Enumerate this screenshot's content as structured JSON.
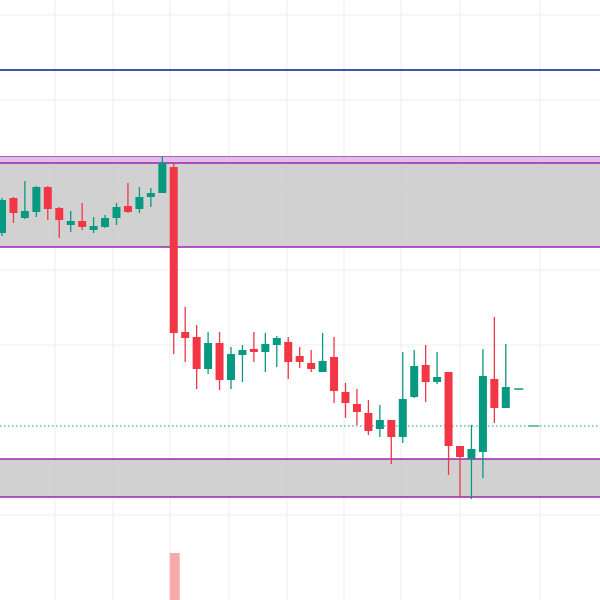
{
  "chart_data": {
    "type": "candlestick",
    "title": "",
    "xlabel": "",
    "ylabel": "",
    "ylim": [
      0,
      60
    ],
    "grid": true,
    "colors": {
      "up": "#089981",
      "down": "#f23645",
      "zone_fill": "#cccccc",
      "zone_border": "#9c27b0",
      "resistance_line": "#3f51b5",
      "dotted_line": "#089981",
      "volume": "#f7a9ad",
      "grid": "#eeeeee",
      "background": "#ffffff"
    },
    "candles": [
      [
        36.7,
        40.2,
        36.4,
        40.0
      ],
      [
        40.2,
        40.3,
        37.7,
        38.7
      ],
      [
        38.2,
        41.9,
        38.1,
        38.9
      ],
      [
        38.8,
        41.4,
        38.3,
        41.3
      ],
      [
        41.3,
        41.4,
        38.0,
        39.1
      ],
      [
        39.2,
        39.3,
        36.2,
        38.0
      ],
      [
        37.5,
        38.9,
        36.8,
        37.9
      ],
      [
        37.9,
        39.7,
        37.0,
        37.3
      ],
      [
        37.0,
        38.3,
        36.7,
        37.4
      ],
      [
        37.3,
        38.5,
        37.2,
        38.2
      ],
      [
        38.2,
        39.7,
        37.5,
        39.3
      ],
      [
        39.4,
        41.7,
        38.7,
        38.8
      ],
      [
        39.1,
        41.3,
        38.7,
        40.3
      ],
      [
        40.3,
        41.2,
        39.3,
        40.7
      ],
      [
        40.7,
        44.4,
        40.7,
        43.7
      ],
      [
        43.3,
        43.7,
        24.6,
        26.7
      ],
      [
        26.8,
        29.3,
        23.8,
        26.2
      ],
      [
        26.3,
        27.5,
        21.1,
        23.1
      ],
      [
        23.1,
        26.8,
        22.6,
        25.7
      ],
      [
        25.7,
        26.8,
        21.0,
        22.0
      ],
      [
        22.0,
        25.3,
        21.1,
        24.6
      ],
      [
        24.5,
        25.5,
        21.8,
        25.0
      ],
      [
        25.1,
        26.8,
        23.8,
        24.8
      ],
      [
        24.8,
        26.7,
        22.8,
        25.6
      ],
      [
        25.5,
        26.4,
        23.3,
        26.2
      ],
      [
        25.8,
        26.3,
        22.1,
        23.8
      ],
      [
        24.4,
        25.3,
        23.2,
        23.8
      ],
      [
        23.7,
        25.0,
        22.8,
        23.1
      ],
      [
        22.8,
        26.7,
        22.8,
        23.9
      ],
      [
        24.3,
        26.3,
        19.7,
        20.9
      ],
      [
        20.8,
        21.7,
        18.2,
        19.7
      ],
      [
        19.6,
        21.1,
        17.5,
        18.8
      ],
      [
        18.7,
        20.0,
        16.5,
        16.9
      ],
      [
        17.1,
        19.5,
        16.3,
        18.0
      ],
      [
        18.0,
        18.0,
        13.6,
        16.3
      ],
      [
        16.3,
        24.8,
        15.7,
        20.1
      ],
      [
        20.3,
        25.0,
        20.2,
        23.4
      ],
      [
        23.5,
        25.5,
        19.8,
        21.8
      ],
      [
        21.8,
        24.8,
        21.6,
        22.3
      ],
      [
        22.8,
        22.8,
        12.5,
        15.4
      ],
      [
        15.4,
        15.4,
        10.3,
        14.3
      ],
      [
        14.1,
        17.5,
        10.1,
        15.1
      ],
      [
        14.8,
        25.1,
        12.2,
        22.4
      ],
      [
        22.1,
        28.3,
        17.7,
        19.2
      ],
      [
        19.2,
        25.6,
        19.2,
        21.3
      ]
    ],
    "candle_format": [
      "open",
      "high",
      "low",
      "close"
    ],
    "zones": [
      {
        "name": "upper-zone",
        "low": 35.3,
        "high": 44.3,
        "inner_line": 43.7
      },
      {
        "name": "lower-zone",
        "low": 10.3,
        "high": 14.1
      }
    ],
    "horizontal_lines": [
      {
        "name": "resistance-line",
        "value": 53.0,
        "style": "solid"
      },
      {
        "name": "dotted-level-line",
        "value": 17.4,
        "style": "dotted"
      }
    ],
    "last_price": 21.3,
    "volume_bar": {
      "candle_index": 15
    }
  }
}
